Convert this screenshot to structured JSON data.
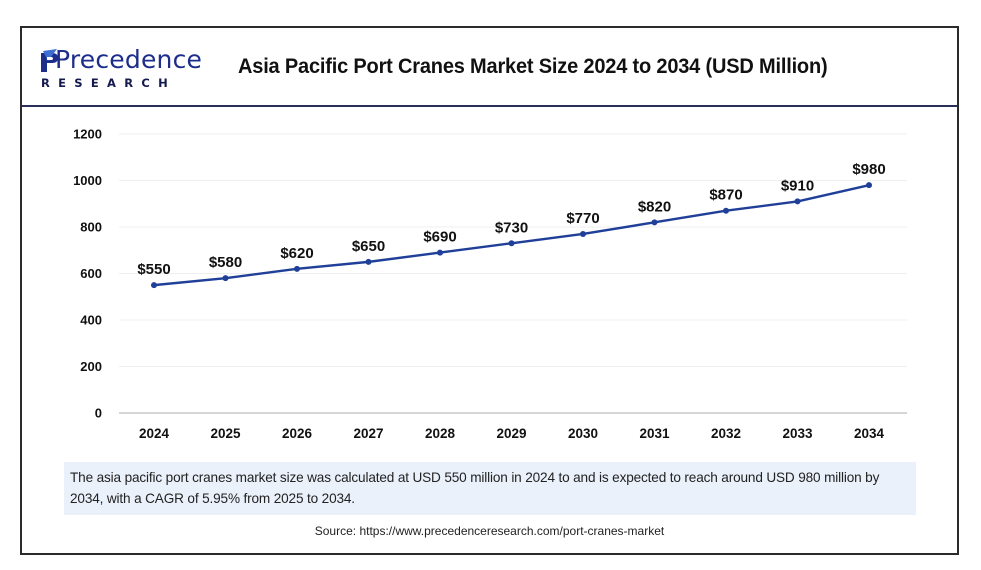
{
  "brand": {
    "name": "Precedence",
    "sub": "RESEARCH",
    "colors": {
      "primary": "#1d2d8c",
      "accent": "#3d6fd1"
    }
  },
  "header": {
    "title": "Asia Pacific Port Cranes Market Size 2024 to 2034 (USD Million)"
  },
  "chart_data": {
    "type": "line",
    "title": "Asia Pacific Port Cranes Market Size 2024 to 2034 (USD Million)",
    "xlabel": "",
    "ylabel": "",
    "categories": [
      "2024",
      "2025",
      "2026",
      "2027",
      "2028",
      "2029",
      "2030",
      "2031",
      "2032",
      "2033",
      "2034"
    ],
    "series": [
      {
        "name": "Market Size (USD Million)",
        "values": [
          550,
          580,
          620,
          650,
          690,
          730,
          770,
          820,
          870,
          910,
          980
        ],
        "labels": [
          "$550",
          "$580",
          "$620",
          "$650",
          "$690",
          "$730",
          "$770",
          "$820",
          "$870",
          "$910",
          "$980"
        ],
        "color": "#1f3f99"
      }
    ],
    "ylim": [
      0,
      1200
    ],
    "yticks": [
      "0",
      "200",
      "400",
      "600",
      "800",
      "1000",
      "1200"
    ],
    "ytick_values": [
      0,
      200,
      400,
      600,
      800,
      1000,
      1200
    ],
    "grid": true,
    "legend": "none"
  },
  "info": {
    "text": "The asia pacific port cranes market size was calculated at USD 550 million in 2024 to and is expected to reach around USD 980 million by 2034, with a CAGR of 5.95% from 2025 to 2034."
  },
  "source": {
    "text": "Source: https://www.precedenceresearch.com/port-cranes-market"
  }
}
